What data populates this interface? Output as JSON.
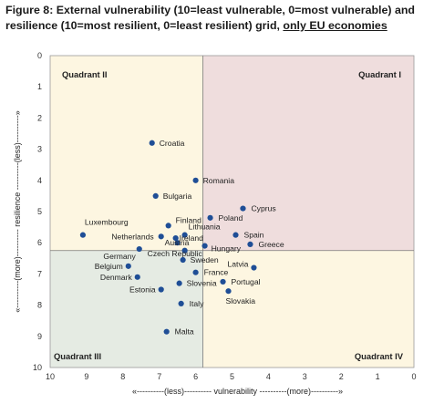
{
  "title": {
    "main": "Figure 8: External vulnerability (10=least vulnerable, 0=most vulnerable) and resilience (10=most resilient, 0=least resilient) grid,",
    "underlined": "only EU economies"
  },
  "chart_data": {
    "type": "scatter",
    "xlabel": "«----------(less)----------   vulnerability   ----------(more)----------»",
    "ylabel": "«----------(more)----------   resilience   ----------(less)----------»",
    "xlim": [
      10,
      0
    ],
    "ylim": [
      0,
      10
    ],
    "x_ticks": [
      "10",
      "9",
      "8",
      "7",
      "6",
      "5",
      "4",
      "3",
      "2",
      "1",
      "0"
    ],
    "y_ticks": [
      "0",
      "1",
      "2",
      "3",
      "4",
      "5",
      "6",
      "7",
      "8",
      "9",
      "10"
    ],
    "divider": {
      "x": 5.8,
      "y": 6.25
    },
    "quadrants": [
      {
        "label": "Quadrant II",
        "color": "#fdf6e1"
      },
      {
        "label": "Quadrant I",
        "color": "#efdddd"
      },
      {
        "label": "Quadrant III",
        "color": "#e5ebe3"
      },
      {
        "label": "Quadrant IV",
        "color": "#fdf6e1"
      }
    ],
    "marker_color": "#1f4e96",
    "points": [
      {
        "label": "Croatia",
        "x": 7.2,
        "y": 2.8
      },
      {
        "label": "Romania",
        "x": 6.0,
        "y": 4.0
      },
      {
        "label": "Bulgaria",
        "x": 7.1,
        "y": 4.5
      },
      {
        "label": "Cyprus",
        "x": 4.7,
        "y": 4.9
      },
      {
        "label": "Poland",
        "x": 5.6,
        "y": 5.2
      },
      {
        "label": "Finland",
        "x": 6.75,
        "y": 5.45
      },
      {
        "label": "Luxembourg",
        "x": 9.1,
        "y": 5.75
      },
      {
        "label": "Netherlands",
        "x": 6.95,
        "y": 5.8
      },
      {
        "label": "Lithuania",
        "x": 6.3,
        "y": 5.75
      },
      {
        "label": "Spain",
        "x": 4.9,
        "y": 5.75
      },
      {
        "label": "Ireland",
        "x": 6.55,
        "y": 5.85
      },
      {
        "label": "Austria",
        "x": 6.5,
        "y": 6.0
      },
      {
        "label": "Greece",
        "x": 4.5,
        "y": 6.05
      },
      {
        "label": "Germany",
        "x": 7.55,
        "y": 6.2
      },
      {
        "label": "Czech Republic",
        "x": 6.3,
        "y": 6.25
      },
      {
        "label": "Hungary",
        "x": 5.75,
        "y": 6.1
      },
      {
        "label": "Sweden",
        "x": 6.35,
        "y": 6.55
      },
      {
        "label": "Belgium",
        "x": 7.85,
        "y": 6.75
      },
      {
        "label": "Latvia",
        "x": 4.4,
        "y": 6.8
      },
      {
        "label": "France",
        "x": 6.0,
        "y": 6.95
      },
      {
        "label": "Denmark",
        "x": 7.6,
        "y": 7.1
      },
      {
        "label": "Slovenia",
        "x": 6.45,
        "y": 7.3
      },
      {
        "label": "Portugal",
        "x": 5.25,
        "y": 7.25
      },
      {
        "label": "Estonia",
        "x": 6.95,
        "y": 7.5
      },
      {
        "label": "Slovakia",
        "x": 5.1,
        "y": 7.55
      },
      {
        "label": "Italy",
        "x": 6.4,
        "y": 7.95
      },
      {
        "label": "Malta",
        "x": 6.8,
        "y": 8.85
      }
    ]
  }
}
